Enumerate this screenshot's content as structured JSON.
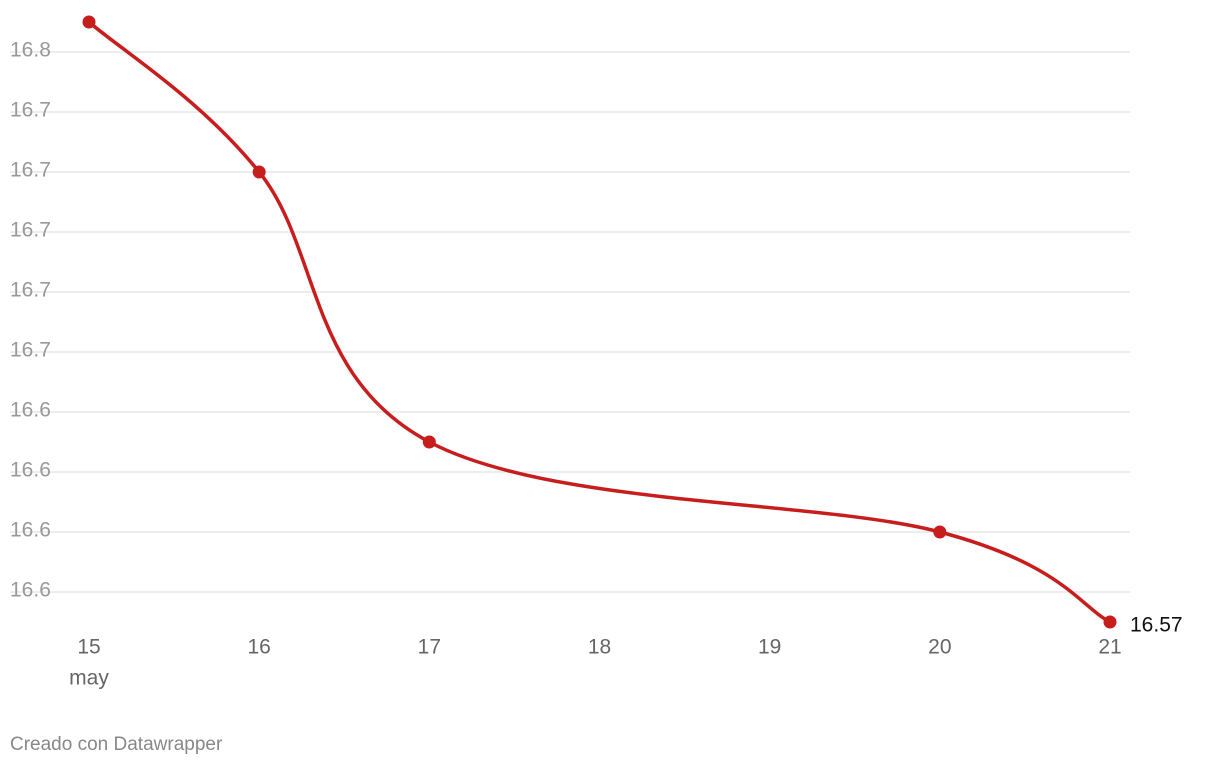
{
  "chart_data": {
    "type": "line",
    "x": [
      15,
      16,
      17,
      20,
      21
    ],
    "xlim": [
      15,
      21
    ],
    "xticks": [
      15,
      16,
      17,
      18,
      19,
      20,
      21
    ],
    "x_month_label": "may",
    "series": [
      {
        "color": "#c71e1d",
        "values": [
          16.77,
          16.72,
          16.63,
          16.6,
          16.57
        ]
      }
    ],
    "ylim": [
      16.57,
      16.77
    ],
    "yticks": [
      {
        "value": 16.58,
        "label": "16.6"
      },
      {
        "value": 16.6,
        "label": "16.6"
      },
      {
        "value": 16.62,
        "label": "16.6"
      },
      {
        "value": 16.64,
        "label": "16.6"
      },
      {
        "value": 16.66,
        "label": "16.7"
      },
      {
        "value": 16.68,
        "label": "16.7"
      },
      {
        "value": 16.7,
        "label": "16.7"
      },
      {
        "value": 16.72,
        "label": "16.7"
      },
      {
        "value": 16.74,
        "label": "16.7"
      },
      {
        "value": 16.76,
        "label": "16.8"
      }
    ],
    "grid": true,
    "label_last": true,
    "credit": "Creado con Datawrapper"
  }
}
